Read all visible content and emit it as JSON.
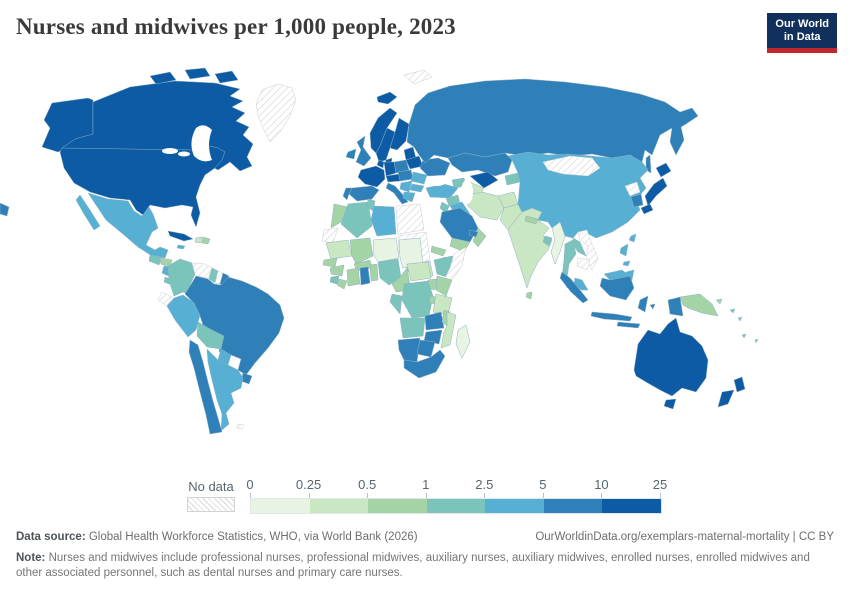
{
  "header": {
    "title": "Nurses and midwives per 1,000 people, 2023",
    "logo": {
      "line1": "Our World",
      "line2": "in Data"
    }
  },
  "legend": {
    "no_data_label": "No data",
    "ticks": [
      "0",
      "0.25",
      "0.5",
      "1",
      "2.5",
      "5",
      "10",
      "25"
    ]
  },
  "footer": {
    "source_label": "Data source:",
    "source_text": " Global Health Workforce Statistics, WHO, via World Bank (2026)",
    "link_text": "OurWorldinData.org/exemplars-maternal-mortality | CC BY",
    "note_label": "Note:",
    "note_text": " Nurses and midwives include professional nurses, professional midwives, auxiliary nurses, auxiliary midwives, enrolled nurses, enrolled midwives and other associated personnel, such as dental nurses and primary care nurses."
  },
  "chart_data": {
    "type": "choropleth-map",
    "title": "Nurses and midwives per 1,000 people, 2023",
    "unit": "nurses and midwives per 1,000 people",
    "bin_edges": [
      0,
      0.25,
      0.5,
      1,
      2.5,
      5,
      10,
      25
    ],
    "bin_labels": [
      "0-0.25",
      "0.25-0.5",
      "0.5-1",
      "1-2.5",
      "2.5-5",
      "5-10",
      "10-25"
    ],
    "palette": [
      "#e8f4e3",
      "#c9e7c2",
      "#a4d4a6",
      "#7ac4bc",
      "#57afd3",
      "#2f80b8",
      "#0d5ba4"
    ],
    "no_data_style": {
      "fill": "hatched",
      "hatch_color": "#d9d9d9",
      "border": "#c9cdd1"
    },
    "country_border_color": "#8fb0c3",
    "regions": {
      "united-states": 6,
      "canada": 6,
      "greenland": "no_data",
      "mexico": 4,
      "guatemala": 3,
      "honduras": 2,
      "nicaragua": 4,
      "costa-rica-panama": 3,
      "cuba": 6,
      "haiti": 1,
      "dominican-republic": 2,
      "jamaica": 4,
      "colombia": 3,
      "venezuela": "no_data",
      "guyana": 3,
      "suriname": "no_data",
      "french-guiana": 5,
      "ecuador": "no_data",
      "peru": 4,
      "brazil": 5,
      "bolivia": 3,
      "paraguay": 4,
      "uruguay": 5,
      "argentina": 4,
      "chile": 5,
      "falkland-islands": "no_data",
      "iceland": 6,
      "ireland": 5,
      "united-kingdom": 5,
      "norway": 6,
      "sweden": 6,
      "finland": 6,
      "denmark": 6,
      "baltic-states": 6,
      "belarus": 6,
      "poland": 5,
      "germany": 6,
      "benelux": 6,
      "france": 6,
      "spain": 5,
      "portugal": 5,
      "alpine-states": 6,
      "italy": 5,
      "czechia-hungary": 5,
      "balkans": 4,
      "romania": 4,
      "bulgaria": 4,
      "greece": 4,
      "ukraine": 5,
      "russia": 5,
      "svalbard": "no_data",
      "kazakhstan": 5,
      "uzbekistan": 6,
      "turkmenistan": 1,
      "kyrgyzstan-tajikistan": 3,
      "caucasus": 3,
      "turkey": 4,
      "syria": 3,
      "jordan": 3,
      "iraq": 4,
      "iran": 1,
      "afghanistan": 1,
      "pakistan": 1,
      "saudi-arabia": 5,
      "yemen": 2,
      "oman": 2,
      "uae": 5,
      "india": 1,
      "nepal": 2,
      "bangladesh": 3,
      "sri-lanka": 2,
      "myanmar": 0,
      "thailand": 3,
      "laos": 3,
      "vietnam": "no_data",
      "cambodia": "no_data",
      "malaysia": 4,
      "china": 4,
      "mongolia": "no_data",
      "north-korea": "no_data",
      "south-korea": 5,
      "japan": 6,
      "taiwan": 4,
      "philippines": 4,
      "indonesia": 5,
      "papua-new-guinea": 2,
      "solomon-islands": 3,
      "fiji": 3,
      "morocco": 2,
      "western-sahara": "no_data",
      "algeria": 3,
      "tunisia": 3,
      "libya": 4,
      "egypt": "no_data",
      "sudan": "no_data",
      "south-sudan": 1,
      "mauritania": 1,
      "senegal": 2,
      "mali": 2,
      "niger": 0,
      "chad": 0,
      "burkina-faso": 2,
      "guinea": 2,
      "sierra-leone": 3,
      "liberia": 2,
      "cote-divoire": 2,
      "ghana": 5,
      "togo-benin": 2,
      "nigeria": 3,
      "cameroon": 2,
      "central-african-republic": 1,
      "eritrea": 2,
      "djibouti": 3,
      "ethiopia": 3,
      "somalia": "no_data",
      "kenya": 2,
      "uganda": 2,
      "gabon-congo": 3,
      "dr-congo": 3,
      "rwanda-burundi": 2,
      "tanzania": 1,
      "angola": 3,
      "zambia": 5,
      "malawi": 2,
      "mozambique": 1,
      "zimbabwe": 5,
      "namibia": 5,
      "botswana": 5,
      "south-africa": 5,
      "madagascar": 0,
      "australia": 6,
      "new-zealand": 6
    }
  }
}
